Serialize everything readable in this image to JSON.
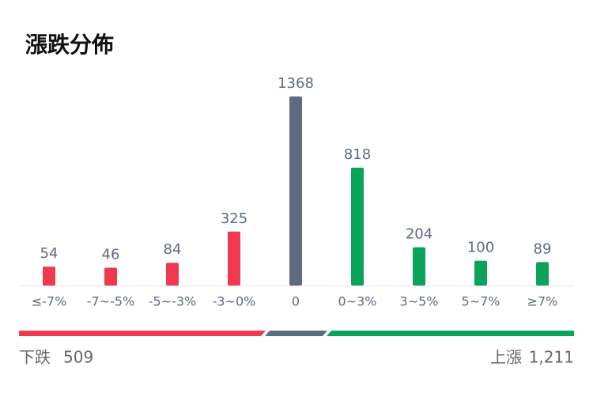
{
  "chart_data": {
    "type": "bar",
    "title": "漲跌分佈",
    "categories": [
      "≤-7%",
      "-7~-5%",
      "-5~-3%",
      "-3~0%",
      "0",
      "0~3%",
      "3~5%",
      "5~7%",
      "≥7%"
    ],
    "values": [
      54,
      46,
      84,
      325,
      1368,
      818,
      204,
      100,
      89
    ],
    "colors": [
      "#f0384f",
      "#f0384f",
      "#f0384f",
      "#f0384f",
      "#5f6b80",
      "#0aa35a",
      "#0aa35a",
      "#0aa35a",
      "#0aa35a"
    ],
    "summary": {
      "down_label": "下跌",
      "down_total": 509,
      "up_label": "上漲",
      "up_total": {
        "value": 1211,
        "label": "1,211"
      }
    }
  }
}
